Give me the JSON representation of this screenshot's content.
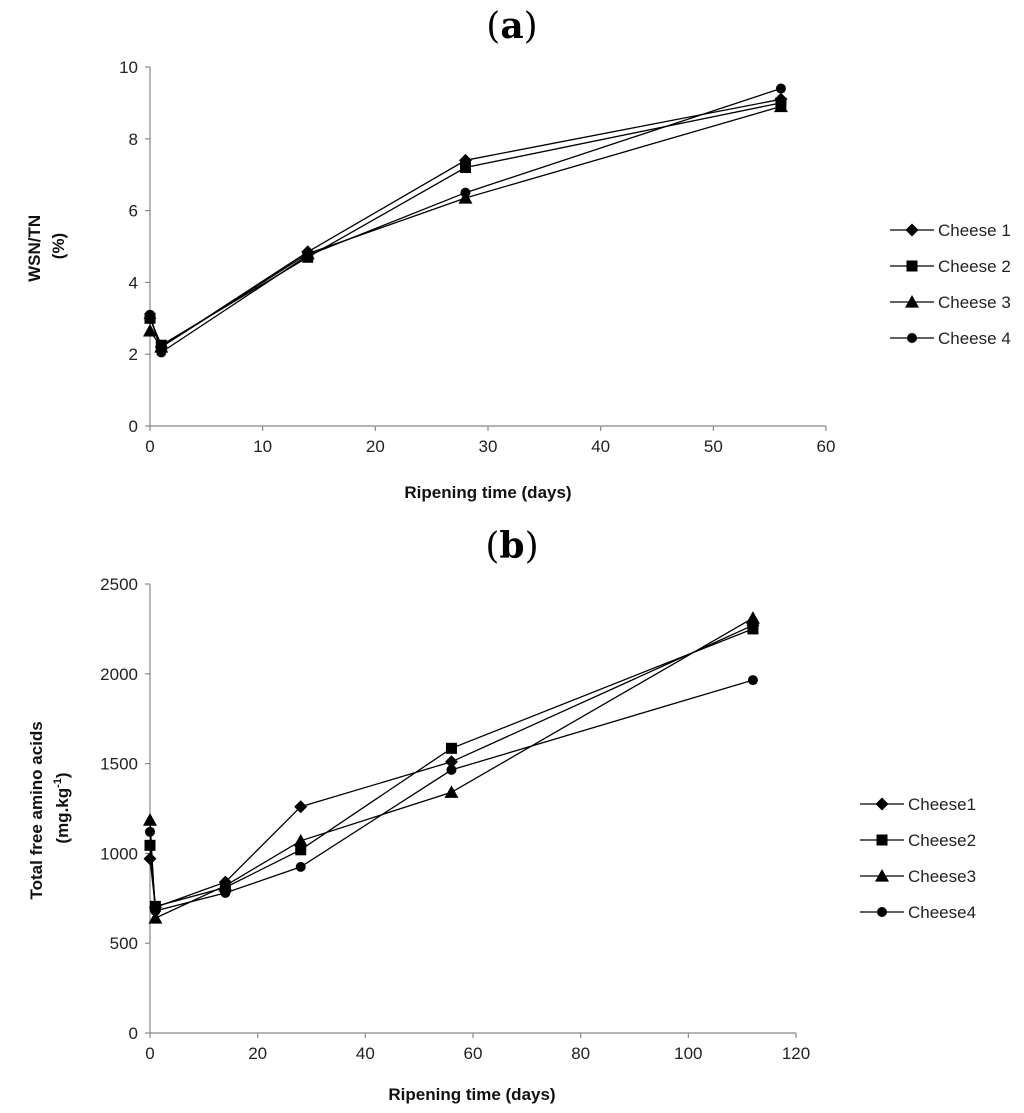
{
  "chart_data": [
    {
      "panel_label": "a",
      "type": "line",
      "title": "",
      "xlabel": "Ripening time (days)",
      "ylabel_lines": [
        "WSN/TN",
        "(%)"
      ],
      "xlim": [
        0,
        60
      ],
      "ylim": [
        0,
        10
      ],
      "xticks": [
        0,
        10,
        20,
        30,
        40,
        50,
        60
      ],
      "yticks": [
        0,
        2,
        4,
        6,
        8,
        10
      ],
      "grid": false,
      "legend_position": "right",
      "series": [
        {
          "name": "Cheese 1",
          "marker": "diamond",
          "x": [
            0,
            1,
            14,
            28,
            56
          ],
          "y": [
            3.0,
            2.2,
            4.85,
            7.4,
            9.1
          ]
        },
        {
          "name": "Cheese 2",
          "marker": "square",
          "x": [
            0,
            1,
            14,
            28,
            56
          ],
          "y": [
            3.0,
            2.25,
            4.7,
            7.2,
            9.0
          ]
        },
        {
          "name": "Cheese 3",
          "marker": "triangle",
          "x": [
            0,
            1,
            14,
            28,
            56
          ],
          "y": [
            2.65,
            2.2,
            4.8,
            6.35,
            8.9
          ]
        },
        {
          "name": "Cheese 4",
          "marker": "circle",
          "x": [
            0,
            1,
            14,
            28,
            56
          ],
          "y": [
            3.1,
            2.05,
            4.75,
            6.5,
            9.4
          ]
        }
      ]
    },
    {
      "panel_label": "b",
      "type": "line",
      "title": "",
      "xlabel": "Ripening time (days)",
      "ylabel_lines": [
        "Total free amino acids",
        "(mg.kg",
        "-1",
        ")"
      ],
      "xlim": [
        0,
        120
      ],
      "ylim": [
        0,
        2500
      ],
      "xticks": [
        0,
        20,
        40,
        60,
        80,
        100,
        120
      ],
      "yticks": [
        0,
        500,
        1000,
        1500,
        2000,
        2500
      ],
      "grid": false,
      "legend_position": "right",
      "series": [
        {
          "name": "Cheese1",
          "marker": "diamond",
          "x": [
            0,
            1,
            14,
            28,
            56,
            112
          ],
          "y": [
            970,
            700,
            840,
            1260,
            1510,
            2270
          ]
        },
        {
          "name": "Cheese2",
          "marker": "square",
          "x": [
            0,
            1,
            14,
            28,
            56,
            112
          ],
          "y": [
            1045,
            705,
            810,
            1020,
            1585,
            2250
          ]
        },
        {
          "name": "Cheese3",
          "marker": "triangle",
          "x": [
            0,
            1,
            14,
            28,
            56,
            112
          ],
          "y": [
            1185,
            640,
            820,
            1070,
            1340,
            2310
          ]
        },
        {
          "name": "Cheese4",
          "marker": "circle",
          "x": [
            0,
            1,
            14,
            28,
            56,
            112
          ],
          "y": [
            1120,
            680,
            780,
            925,
            1465,
            1965
          ]
        }
      ]
    }
  ]
}
